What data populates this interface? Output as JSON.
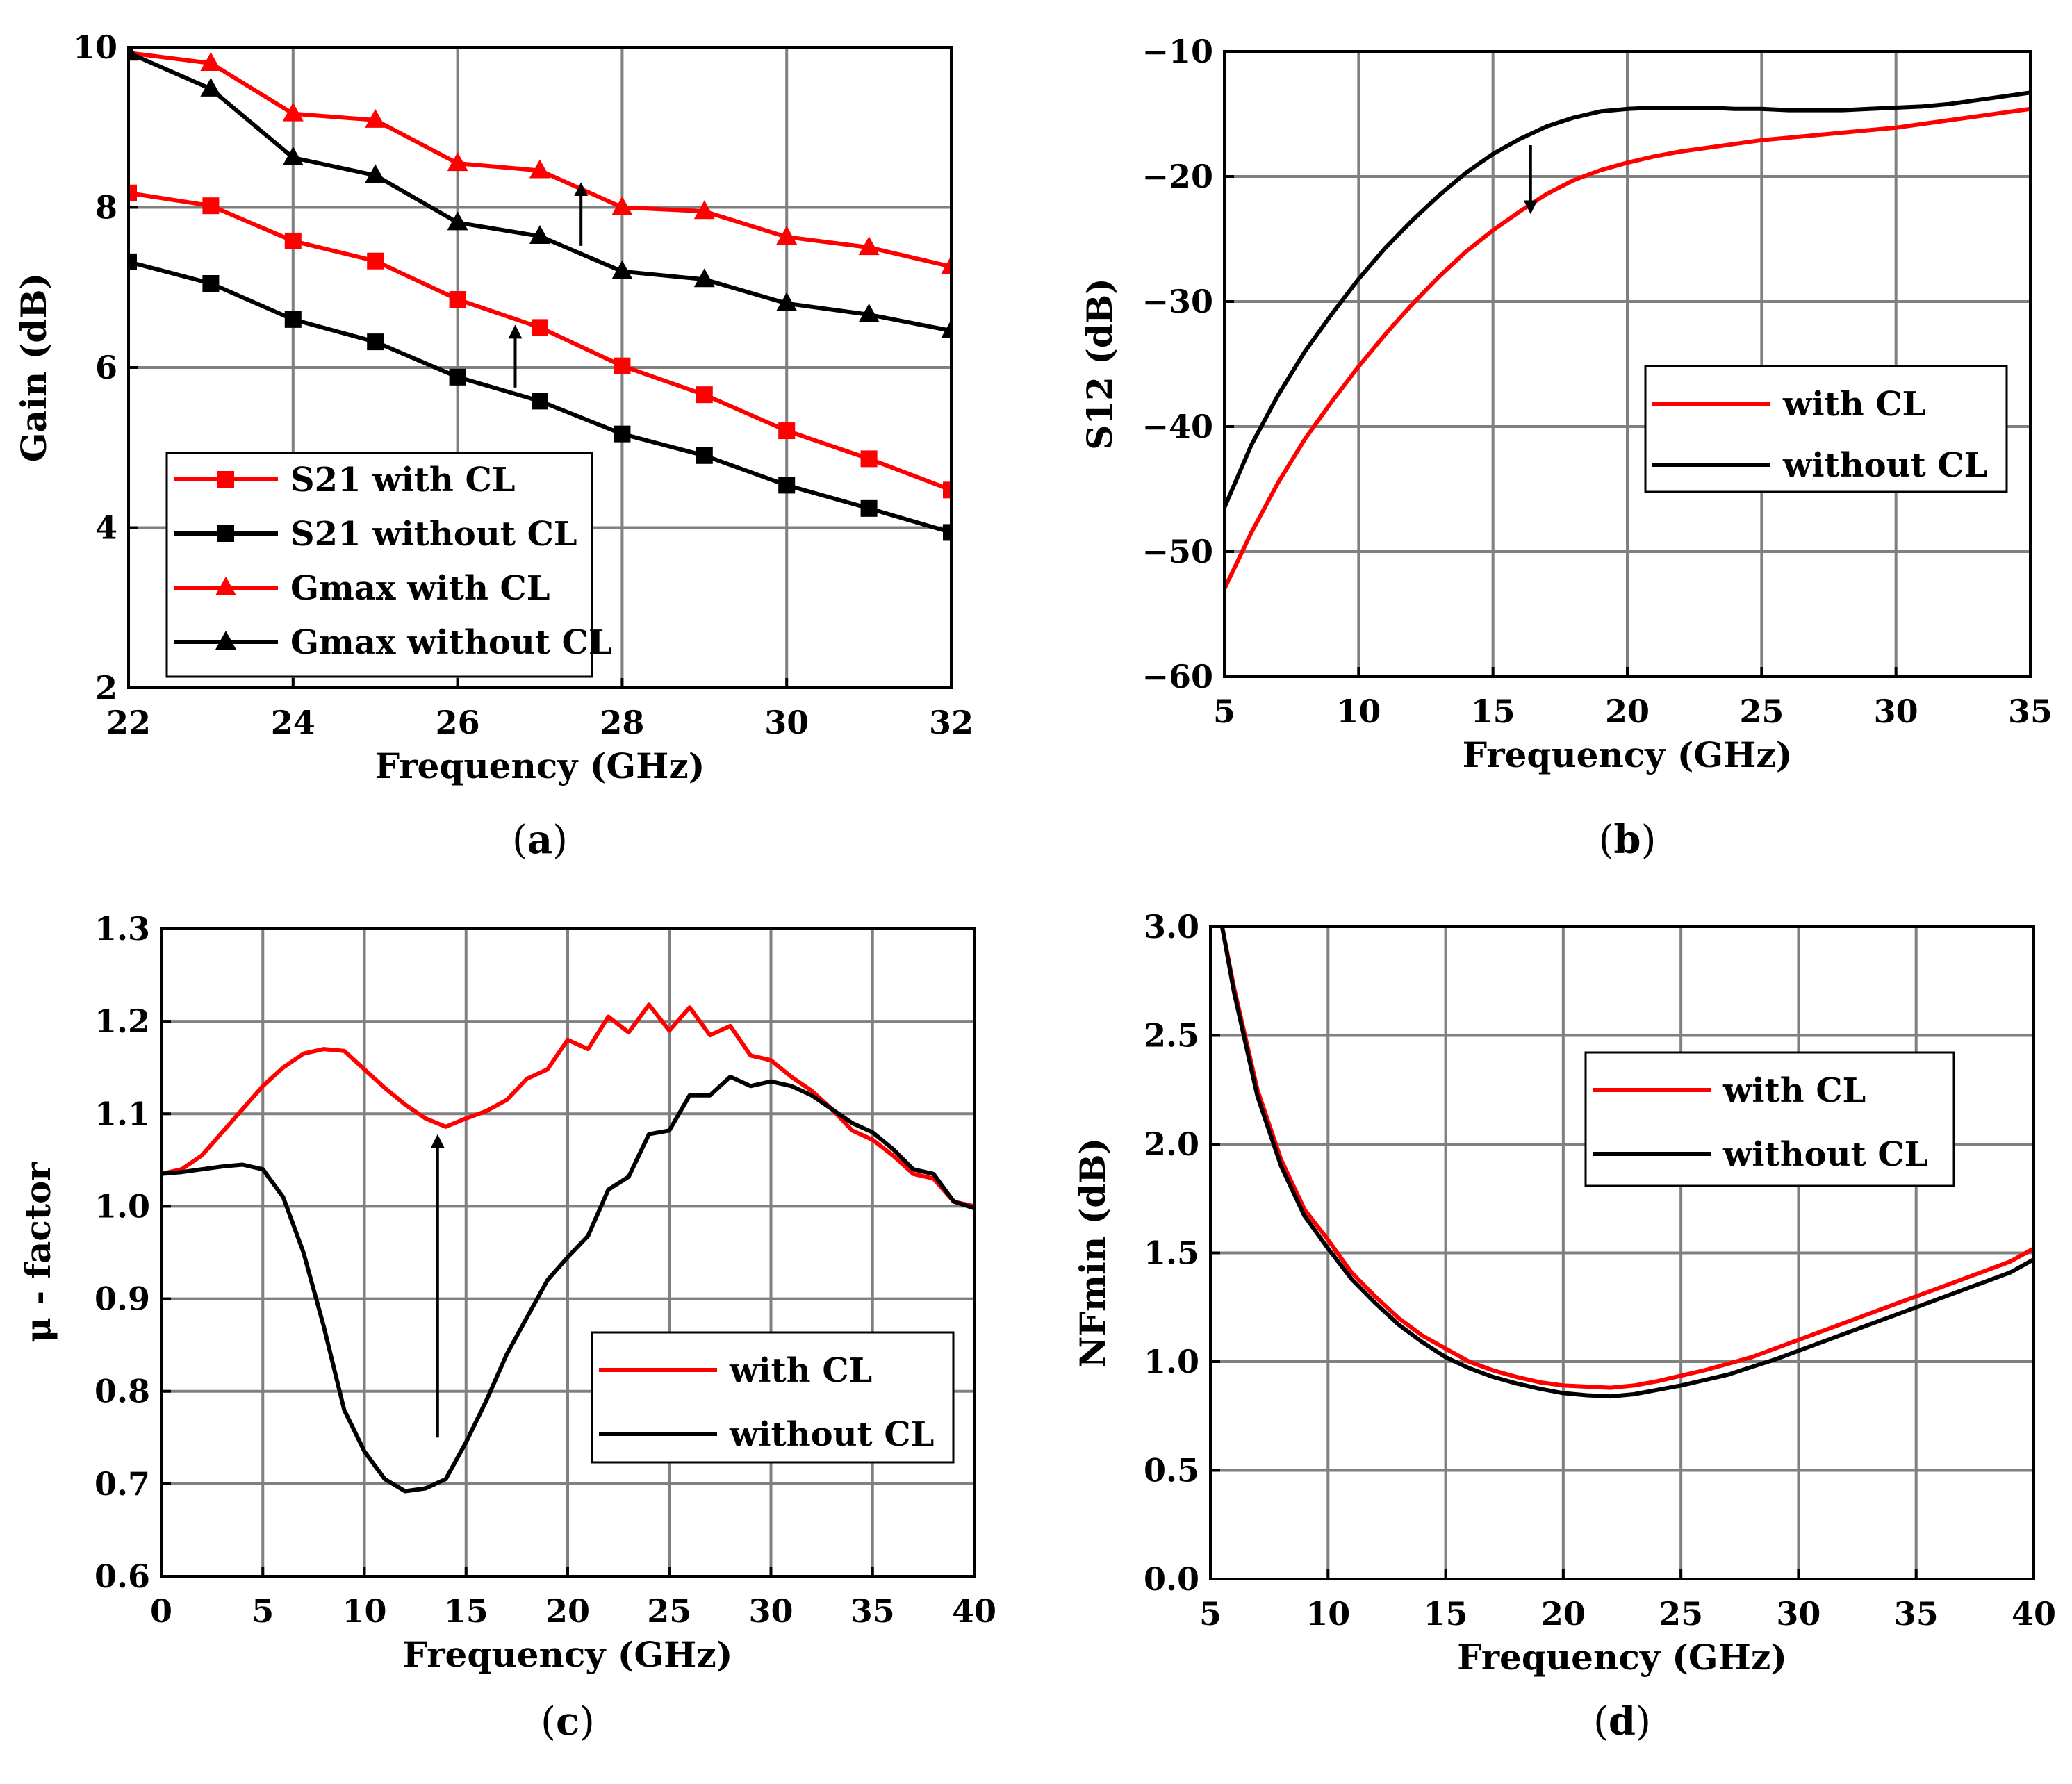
{
  "chart_data": [
    {
      "id": "a",
      "panel_label": "a",
      "type": "line",
      "xlabel": "Frequency (GHz)",
      "ylabel": "Gain (dB)",
      "xlim": [
        22,
        32
      ],
      "ylim": [
        2,
        10
      ],
      "xticks": [
        "22",
        "24",
        "26",
        "28",
        "30",
        "32"
      ],
      "yticks": [
        "2",
        "4",
        "6",
        "8",
        "10"
      ],
      "grid": true,
      "legend_position": "bottom-left",
      "series": [
        {
          "name": "S21 with CL",
          "color": "#ff0000",
          "marker": "square",
          "x": [
            22,
            23,
            24,
            25,
            26,
            27,
            28,
            29,
            30,
            31,
            32
          ],
          "y": [
            8.18,
            8.02,
            7.58,
            7.33,
            6.85,
            6.5,
            6.02,
            5.66,
            5.21,
            4.86,
            4.47
          ]
        },
        {
          "name": "S21 without CL",
          "color": "#000000",
          "marker": "square",
          "x": [
            22,
            23,
            24,
            25,
            26,
            27,
            28,
            29,
            30,
            31,
            32
          ],
          "y": [
            7.32,
            7.05,
            6.6,
            6.32,
            5.88,
            5.58,
            5.17,
            4.9,
            4.53,
            4.24,
            3.94
          ]
        },
        {
          "name": "Gmax with CL",
          "color": "#ff0000",
          "marker": "triangle",
          "x": [
            22,
            23,
            24,
            25,
            26,
            27,
            28,
            29,
            30,
            31,
            32
          ],
          "y": [
            9.93,
            9.8,
            9.17,
            9.09,
            8.55,
            8.46,
            8.0,
            7.95,
            7.63,
            7.5,
            7.26
          ]
        },
        {
          "name": "Gmax without CL",
          "color": "#000000",
          "marker": "triangle",
          "x": [
            22,
            23,
            24,
            25,
            26,
            27,
            28,
            29,
            30,
            31,
            32
          ],
          "y": [
            9.93,
            9.48,
            8.62,
            8.4,
            7.81,
            7.64,
            7.2,
            7.1,
            6.8,
            6.66,
            6.46
          ]
        }
      ],
      "annotations": [
        {
          "type": "arrow",
          "from": [
            26.7,
            5.75
          ],
          "to": [
            26.7,
            6.5
          ]
        },
        {
          "type": "arrow",
          "from": [
            27.5,
            7.52
          ],
          "to": [
            27.5,
            8.28
          ]
        }
      ]
    },
    {
      "id": "b",
      "panel_label": "b",
      "type": "line",
      "xlabel": "Frequency (GHz)",
      "ylabel": "S12 (dB)",
      "xlim": [
        5,
        35
      ],
      "ylim": [
        -60,
        -10
      ],
      "xticks": [
        "5",
        "10",
        "15",
        "20",
        "25",
        "30",
        "35"
      ],
      "yticks": [
        "−60",
        "−50",
        "−40",
        "−30",
        "−20",
        "−10"
      ],
      "grid": true,
      "legend_position": "center-right",
      "series": [
        {
          "name": "with CL",
          "color": "#ff0000",
          "marker": "none",
          "x": [
            5,
            6,
            7,
            8,
            9,
            10,
            11,
            12,
            13,
            14,
            15,
            16,
            17,
            18,
            19,
            20,
            21,
            22,
            23,
            24,
            25,
            26,
            27,
            28,
            29,
            30,
            31,
            32,
            33,
            34,
            35
          ],
          "y": [
            -53.0,
            -48.5,
            -44.5,
            -41.0,
            -38.0,
            -35.2,
            -32.6,
            -30.2,
            -28.0,
            -26.0,
            -24.3,
            -22.8,
            -21.4,
            -20.3,
            -19.5,
            -18.9,
            -18.4,
            -18.0,
            -17.7,
            -17.4,
            -17.1,
            -16.9,
            -16.7,
            -16.5,
            -16.3,
            -16.1,
            -15.8,
            -15.5,
            -15.2,
            -14.9,
            -14.6
          ]
        },
        {
          "name": "without CL",
          "color": "#000000",
          "marker": "none",
          "x": [
            5,
            6,
            7,
            8,
            9,
            10,
            11,
            12,
            13,
            14,
            15,
            16,
            17,
            18,
            19,
            20,
            21,
            22,
            23,
            24,
            25,
            26,
            27,
            28,
            29,
            30,
            31,
            32,
            33,
            34,
            35
          ],
          "y": [
            -46.5,
            -41.5,
            -37.5,
            -34.0,
            -31.0,
            -28.2,
            -25.7,
            -23.5,
            -21.5,
            -19.7,
            -18.2,
            -17.0,
            -16.0,
            -15.3,
            -14.8,
            -14.6,
            -14.5,
            -14.5,
            -14.5,
            -14.6,
            -14.6,
            -14.7,
            -14.7,
            -14.7,
            -14.6,
            -14.5,
            -14.4,
            -14.2,
            -13.9,
            -13.6,
            -13.3
          ]
        }
      ],
      "annotations": [
        {
          "type": "arrow",
          "from": [
            16.4,
            -17.5
          ],
          "to": [
            16.4,
            -22.8
          ]
        }
      ]
    },
    {
      "id": "c",
      "panel_label": "c",
      "type": "line",
      "xlabel": "Frequency (GHz)",
      "ylabel": "μ - factor",
      "xlim": [
        0,
        40
      ],
      "ylim": [
        0.6,
        1.3
      ],
      "xticks": [
        "0",
        "5",
        "10",
        "15",
        "20",
        "25",
        "30",
        "35",
        "40"
      ],
      "yticks": [
        "0.6",
        "0.7",
        "0.8",
        "0.9",
        "1.0",
        "1.1",
        "1.2",
        "1.3"
      ],
      "grid": true,
      "legend_position": "bottom-right",
      "series": [
        {
          "name": "with CL",
          "color": "#ff0000",
          "marker": "none",
          "x": [
            0,
            1,
            2,
            3,
            4,
            5,
            6,
            7,
            8,
            9,
            10,
            11,
            12,
            13,
            14,
            15,
            16,
            17,
            18,
            19,
            20,
            21,
            22,
            23,
            24,
            25,
            26,
            27,
            28,
            29,
            30,
            31,
            32,
            33,
            34,
            35,
            36,
            37,
            38,
            39,
            40
          ],
          "y": [
            1.035,
            1.04,
            1.055,
            1.08,
            1.105,
            1.13,
            1.15,
            1.165,
            1.17,
            1.168,
            1.148,
            1.128,
            1.11,
            1.095,
            1.086,
            1.095,
            1.103,
            1.115,
            1.138,
            1.148,
            1.18,
            1.17,
            1.205,
            1.188,
            1.218,
            1.19,
            1.215,
            1.185,
            1.195,
            1.163,
            1.158,
            1.14,
            1.125,
            1.105,
            1.082,
            1.072,
            1.055,
            1.035,
            1.03,
            1.005,
            1.0
          ]
        },
        {
          "name": "without CL",
          "color": "#000000",
          "marker": "none",
          "x": [
            0,
            1,
            2,
            3,
            4,
            5,
            6,
            7,
            8,
            9,
            10,
            11,
            12,
            13,
            14,
            15,
            16,
            17,
            18,
            19,
            20,
            21,
            22,
            23,
            24,
            25,
            26,
            27,
            28,
            29,
            30,
            31,
            32,
            33,
            34,
            35,
            36,
            37,
            38,
            39,
            40
          ],
          "y": [
            1.035,
            1.037,
            1.04,
            1.043,
            1.045,
            1.04,
            1.01,
            0.95,
            0.87,
            0.78,
            0.735,
            0.705,
            0.692,
            0.695,
            0.705,
            0.745,
            0.79,
            0.84,
            0.88,
            0.92,
            0.945,
            0.968,
            1.018,
            1.032,
            1.078,
            1.082,
            1.12,
            1.12,
            1.14,
            1.13,
            1.135,
            1.13,
            1.12,
            1.105,
            1.09,
            1.08,
            1.062,
            1.04,
            1.035,
            1.005,
            0.998
          ]
        }
      ],
      "annotations": [
        {
          "type": "arrow",
          "from": [
            13.6,
            0.75
          ],
          "to": [
            13.6,
            1.075
          ]
        }
      ]
    },
    {
      "id": "d",
      "panel_label": "d",
      "type": "line",
      "xlabel": "Frequency (GHz)",
      "ylabel": "NFmin (dB)",
      "xlim": [
        5,
        40
      ],
      "ylim": [
        0.0,
        3.0
      ],
      "xticks": [
        "5",
        "10",
        "15",
        "20",
        "25",
        "30",
        "35",
        "40"
      ],
      "yticks": [
        "0.0",
        "0.5",
        "1.0",
        "1.5",
        "2.0",
        "2.5",
        "3.0"
      ],
      "grid": true,
      "legend_position": "top-right",
      "series": [
        {
          "name": "with CL",
          "color": "#ff0000",
          "marker": "none",
          "x": [
            5.5,
            6,
            7,
            8,
            9,
            10,
            11,
            12,
            13,
            14,
            15,
            16,
            17,
            18,
            19,
            20,
            21,
            22,
            23,
            24,
            25,
            26,
            27,
            28,
            29,
            30,
            31,
            32,
            33,
            34,
            35,
            36,
            37,
            38,
            39,
            40
          ],
          "y": [
            3.0,
            2.72,
            2.25,
            1.93,
            1.7,
            1.56,
            1.41,
            1.3,
            1.2,
            1.12,
            1.06,
            1.0,
            0.96,
            0.93,
            0.905,
            0.89,
            0.885,
            0.88,
            0.89,
            0.91,
            0.935,
            0.96,
            0.99,
            1.02,
            1.06,
            1.1,
            1.14,
            1.18,
            1.22,
            1.26,
            1.3,
            1.34,
            1.38,
            1.42,
            1.46,
            1.52
          ]
        },
        {
          "name": "without CL",
          "color": "#000000",
          "marker": "none",
          "x": [
            5.5,
            6,
            7,
            8,
            9,
            10,
            11,
            12,
            13,
            14,
            15,
            16,
            17,
            18,
            19,
            20,
            21,
            22,
            23,
            24,
            25,
            26,
            27,
            28,
            29,
            30,
            31,
            32,
            33,
            34,
            35,
            36,
            37,
            38,
            39,
            40
          ],
          "y": [
            3.0,
            2.7,
            2.22,
            1.9,
            1.67,
            1.52,
            1.38,
            1.27,
            1.17,
            1.09,
            1.02,
            0.97,
            0.93,
            0.9,
            0.875,
            0.855,
            0.845,
            0.84,
            0.85,
            0.87,
            0.89,
            0.915,
            0.94,
            0.975,
            1.01,
            1.05,
            1.09,
            1.13,
            1.17,
            1.21,
            1.25,
            1.29,
            1.33,
            1.37,
            1.41,
            1.47
          ]
        }
      ],
      "annotations": []
    }
  ]
}
